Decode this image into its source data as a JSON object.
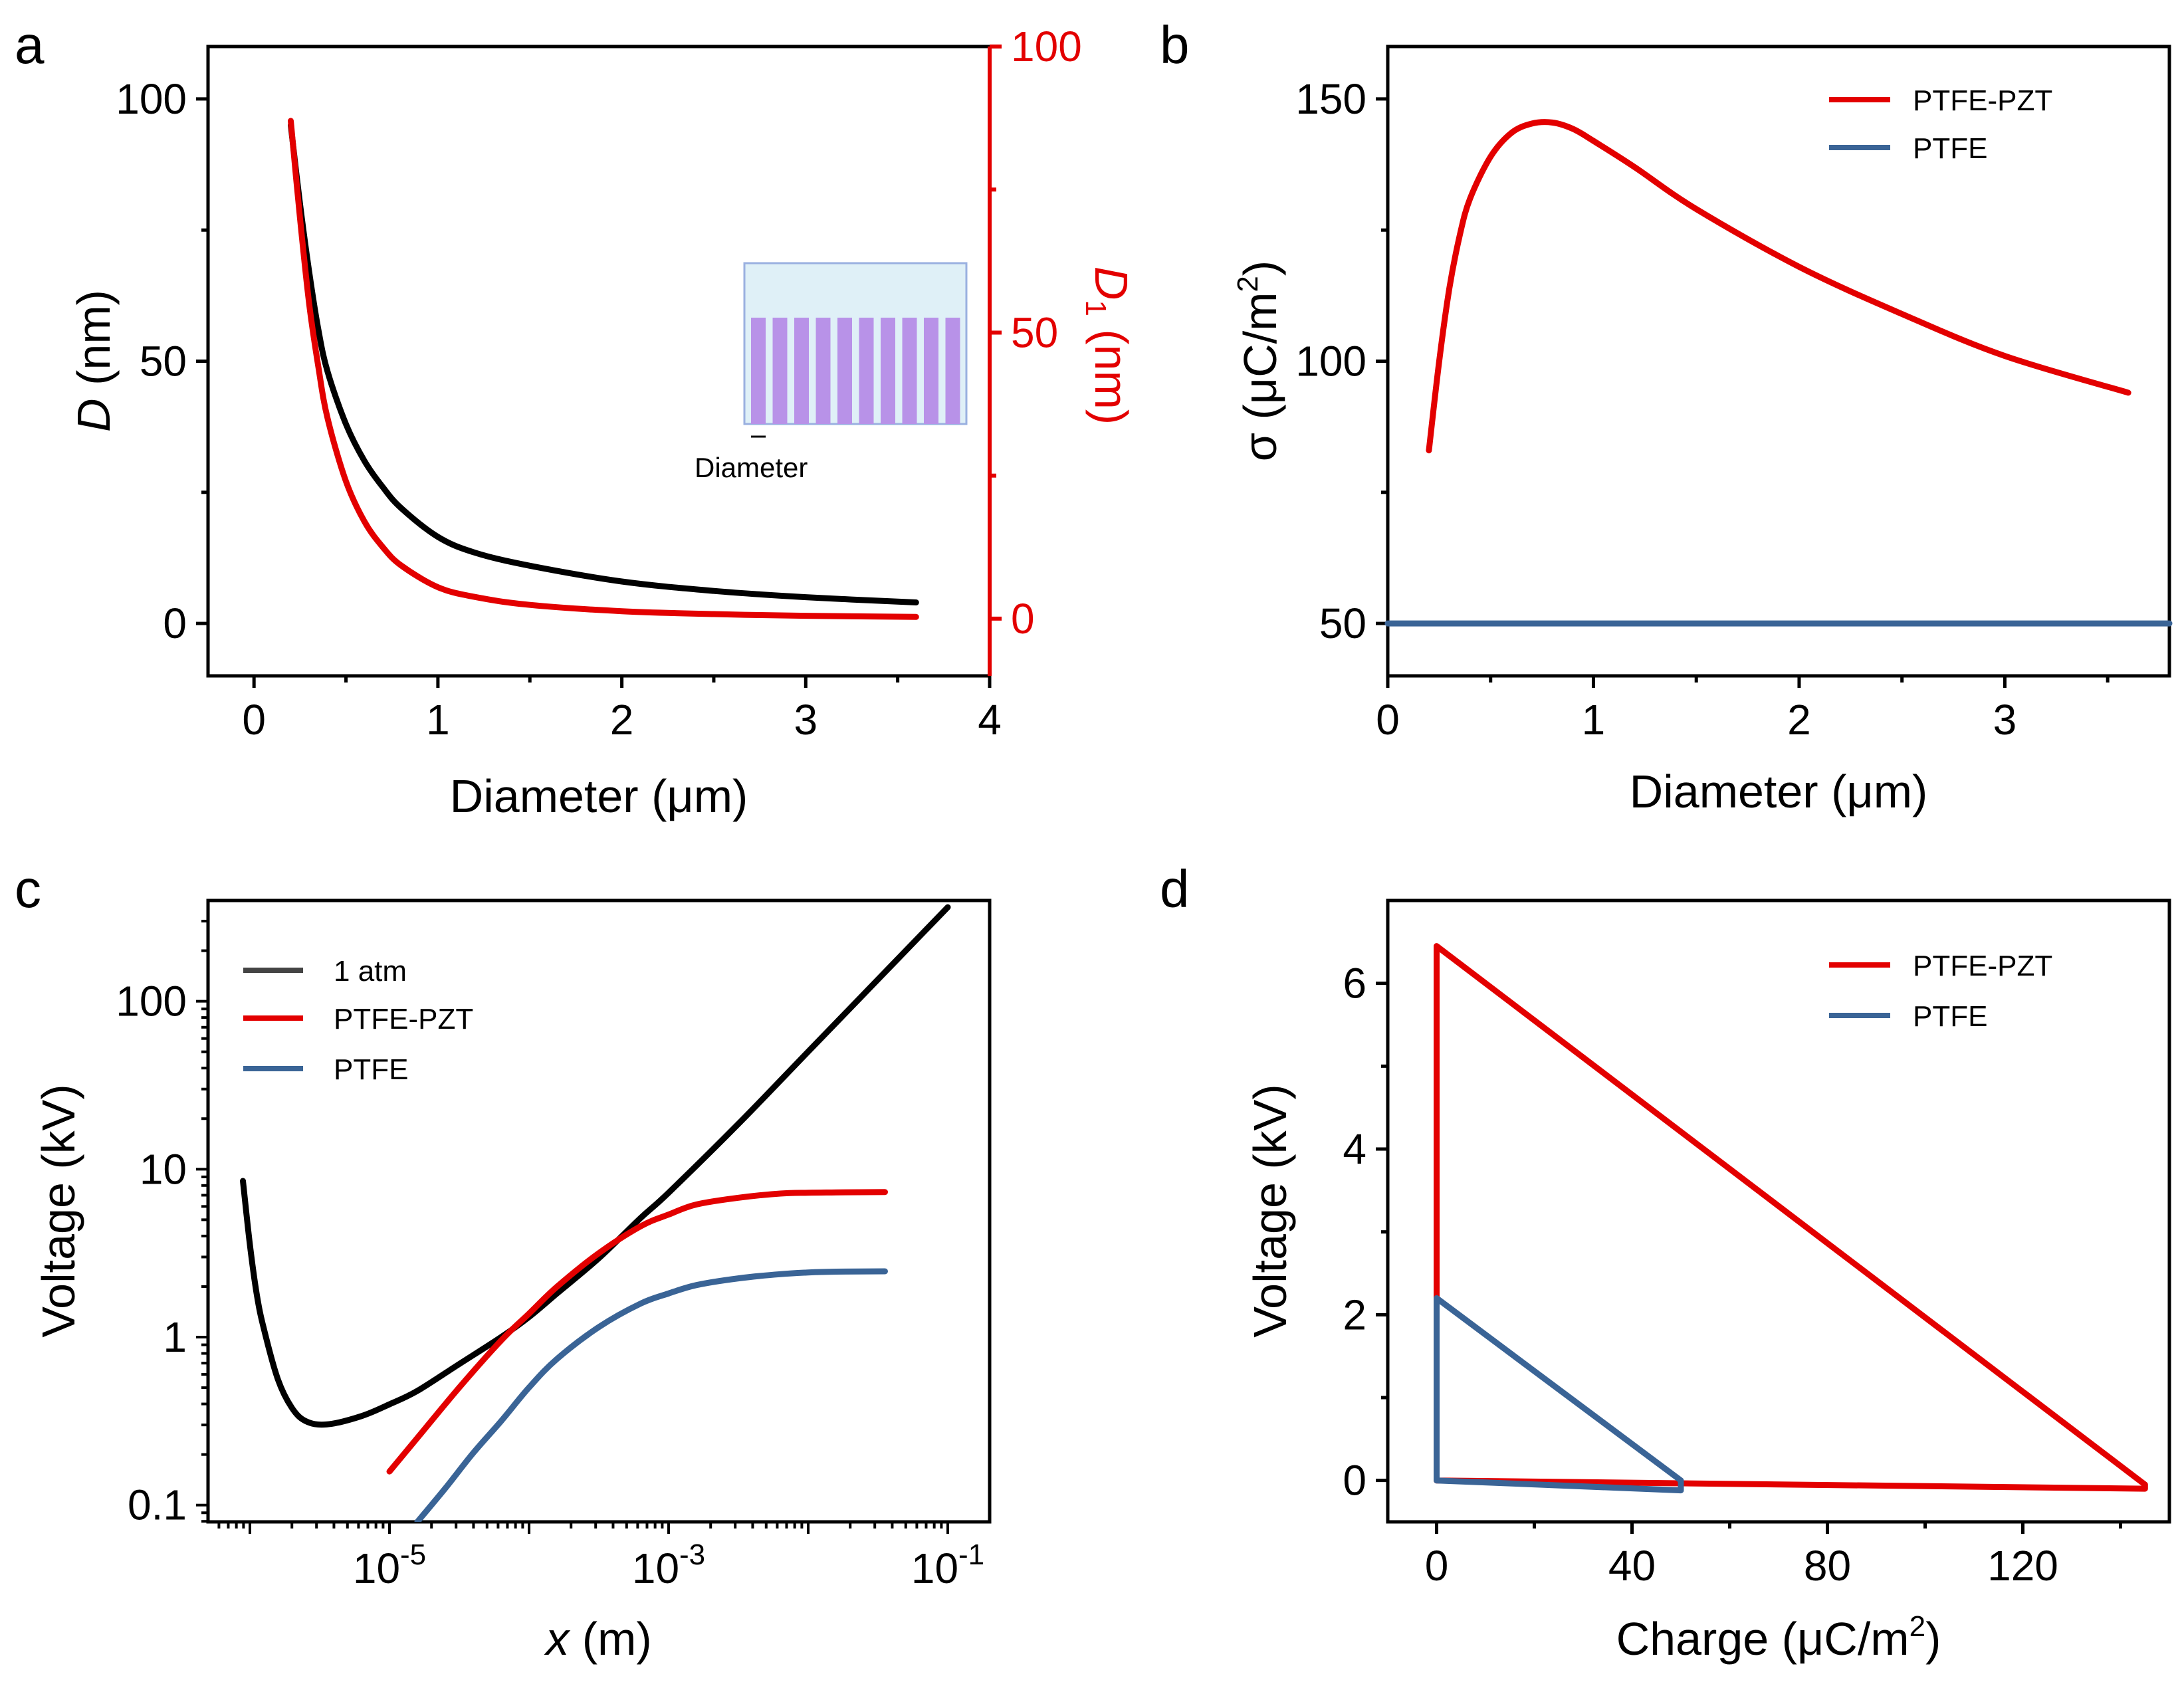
{
  "chart_data": [
    {
      "panel": "a",
      "type": "line",
      "xlabel": "Diameter (μm)",
      "ylabel_left_italic": "D",
      "ylabel_left_unit": " (nm)",
      "ylabel_right_italic": "D",
      "ylabel_right_sub": "1",
      "ylabel_right_unit": " (nm)",
      "xlim": [
        -0.25,
        4
      ],
      "ylim_left": [
        -10,
        110
      ],
      "ylim_right": [
        -10,
        100
      ],
      "x_ticks": [
        "0",
        "1",
        "2",
        "3",
        "4"
      ],
      "y_ticks_left": [
        "0",
        "50",
        "100"
      ],
      "y_ticks_right": [
        "0",
        "50",
        "100"
      ],
      "inset_label": "Diameter",
      "series": [
        {
          "name": "D",
          "axis": "left",
          "color": "#000000",
          "x": [
            0.2,
            0.25,
            0.3,
            0.35,
            0.4,
            0.5,
            0.6,
            0.7,
            0.8,
            1.0,
            1.2,
            1.5,
            2.0,
            2.5,
            3.0,
            3.6
          ],
          "y": [
            95,
            80,
            67,
            56,
            48,
            38,
            31,
            26,
            22,
            16.5,
            13.5,
            11,
            8,
            6.2,
            5,
            4
          ]
        },
        {
          "name": "D1",
          "axis": "right",
          "color": "#e30000",
          "x": [
            0.2,
            0.25,
            0.3,
            0.35,
            0.4,
            0.5,
            0.6,
            0.7,
            0.8,
            1.0,
            1.2,
            1.5,
            2.0,
            2.5,
            3.0,
            3.6
          ],
          "y": [
            87,
            70,
            55,
            44,
            35,
            24,
            17,
            12.5,
            9.3,
            5.5,
            3.8,
            2.4,
            1.3,
            0.8,
            0.5,
            0.3
          ]
        }
      ]
    },
    {
      "panel": "b",
      "type": "line",
      "xlabel": "Diameter (μm)",
      "ylabel_pre": "σ (μC/m",
      "ylabel_sup": "2",
      "ylabel_post": ")",
      "xlim": [
        0,
        3.8
      ],
      "ylim": [
        40,
        160
      ],
      "x_ticks": [
        "0",
        "1",
        "2",
        "3"
      ],
      "y_ticks": [
        "50",
        "100",
        "150"
      ],
      "legend": [
        "PTFE-PZT",
        "PTFE"
      ],
      "series": [
        {
          "name": "PTFE-PZT",
          "color": "#e30000",
          "x": [
            0.2,
            0.25,
            0.3,
            0.35,
            0.4,
            0.5,
            0.6,
            0.7,
            0.8,
            0.9,
            1.0,
            1.2,
            1.5,
            2.0,
            2.5,
            3.0,
            3.6
          ],
          "y": [
            83,
            100,
            114,
            124,
            131,
            139,
            143.5,
            145.3,
            145.5,
            144.3,
            142,
            137,
            129,
            118,
            109,
            101,
            94
          ]
        },
        {
          "name": "PTFE",
          "color": "#3a6496",
          "x": [
            0,
            3.8
          ],
          "y": [
            50,
            50
          ]
        }
      ]
    },
    {
      "panel": "c",
      "type": "line",
      "xscale": "log",
      "yscale": "log",
      "xlabel_italic": "x",
      "xlabel_unit": " (m)",
      "ylabel": "Voltage (kV)",
      "xlim_log10": [
        -6.3,
        -0.7
      ],
      "ylim_log10": [
        -1.1,
        2.6
      ],
      "x_tick_base": "10",
      "x_tick_exps": [
        "-5",
        "-3",
        "-1"
      ],
      "y_ticks": [
        "0.1",
        "1",
        "10",
        "100"
      ],
      "legend": [
        "1 atm",
        "PTFE-PZT",
        "PTFE"
      ],
      "series": [
        {
          "name": "1 atm",
          "color": "#000000",
          "log10x": [
            -6.05,
            -6.0,
            -5.95,
            -5.9,
            -5.8,
            -5.7,
            -5.6,
            -5.45,
            -5.2,
            -5.0,
            -4.8,
            -4.5,
            -4.2,
            -4.0,
            -3.8,
            -3.5,
            -3.2,
            -3.0,
            -2.5,
            -2.0,
            -1.5,
            -1.0
          ],
          "log10y": [
            0.93,
            0.55,
            0.25,
            0.05,
            -0.25,
            -0.42,
            -0.5,
            -0.52,
            -0.47,
            -0.4,
            -0.32,
            -0.16,
            0.0,
            0.12,
            0.26,
            0.47,
            0.71,
            0.86,
            1.27,
            1.7,
            2.13,
            2.56
          ]
        },
        {
          "name": "PTFE-PZT",
          "color": "#e30000",
          "log10x": [
            -5.0,
            -4.8,
            -4.5,
            -4.2,
            -4.0,
            -3.8,
            -3.5,
            -3.2,
            -3.0,
            -2.8,
            -2.5,
            -2.2,
            -2.0,
            -1.8,
            -1.45
          ],
          "log10y": [
            -0.8,
            -0.6,
            -0.3,
            -0.02,
            0.14,
            0.3,
            0.5,
            0.66,
            0.73,
            0.79,
            0.83,
            0.855,
            0.86,
            0.862,
            0.864
          ]
        },
        {
          "name": "PTFE",
          "color": "#3a6496",
          "log10x": [
            -4.8,
            -4.6,
            -4.4,
            -4.2,
            -4.0,
            -3.8,
            -3.5,
            -3.2,
            -3.0,
            -2.8,
            -2.5,
            -2.2,
            -2.0,
            -1.8,
            -1.45
          ],
          "log10y": [
            -1.1,
            -0.9,
            -0.69,
            -0.5,
            -0.3,
            -0.13,
            0.06,
            0.2,
            0.26,
            0.31,
            0.35,
            0.375,
            0.385,
            0.39,
            0.392
          ]
        }
      ]
    },
    {
      "panel": "d",
      "type": "line",
      "xlabel_pre": "Charge (μC/m",
      "xlabel_sup": "2",
      "xlabel_post": ")",
      "ylabel": "Voltage (kV)",
      "xlim": [
        -10,
        150
      ],
      "ylim": [
        -0.5,
        7
      ],
      "x_ticks": [
        "0",
        "40",
        "80",
        "120"
      ],
      "y_ticks": [
        "0",
        "2",
        "4",
        "6"
      ],
      "legend": [
        "PTFE-PZT",
        "PTFE"
      ],
      "series": [
        {
          "name": "PTFE-PZT",
          "color": "#e30000",
          "x": [
            0,
            0,
            145,
            145,
            0
          ],
          "y": [
            0,
            6.45,
            -0.05,
            -0.1,
            0
          ]
        },
        {
          "name": "PTFE",
          "color": "#3a6496",
          "x": [
            0,
            0,
            50,
            50,
            0
          ],
          "y": [
            0,
            2.2,
            0,
            -0.12,
            0
          ]
        }
      ]
    }
  ],
  "panel_labels": [
    "a",
    "b",
    "c",
    "d"
  ],
  "colors": {
    "red": "#e30000",
    "blue": "#3a6496",
    "black": "#000000",
    "inset_fill": "#dff0f7",
    "inset_pillar": "#b892e8",
    "inset_border": "#9ab0e0"
  }
}
